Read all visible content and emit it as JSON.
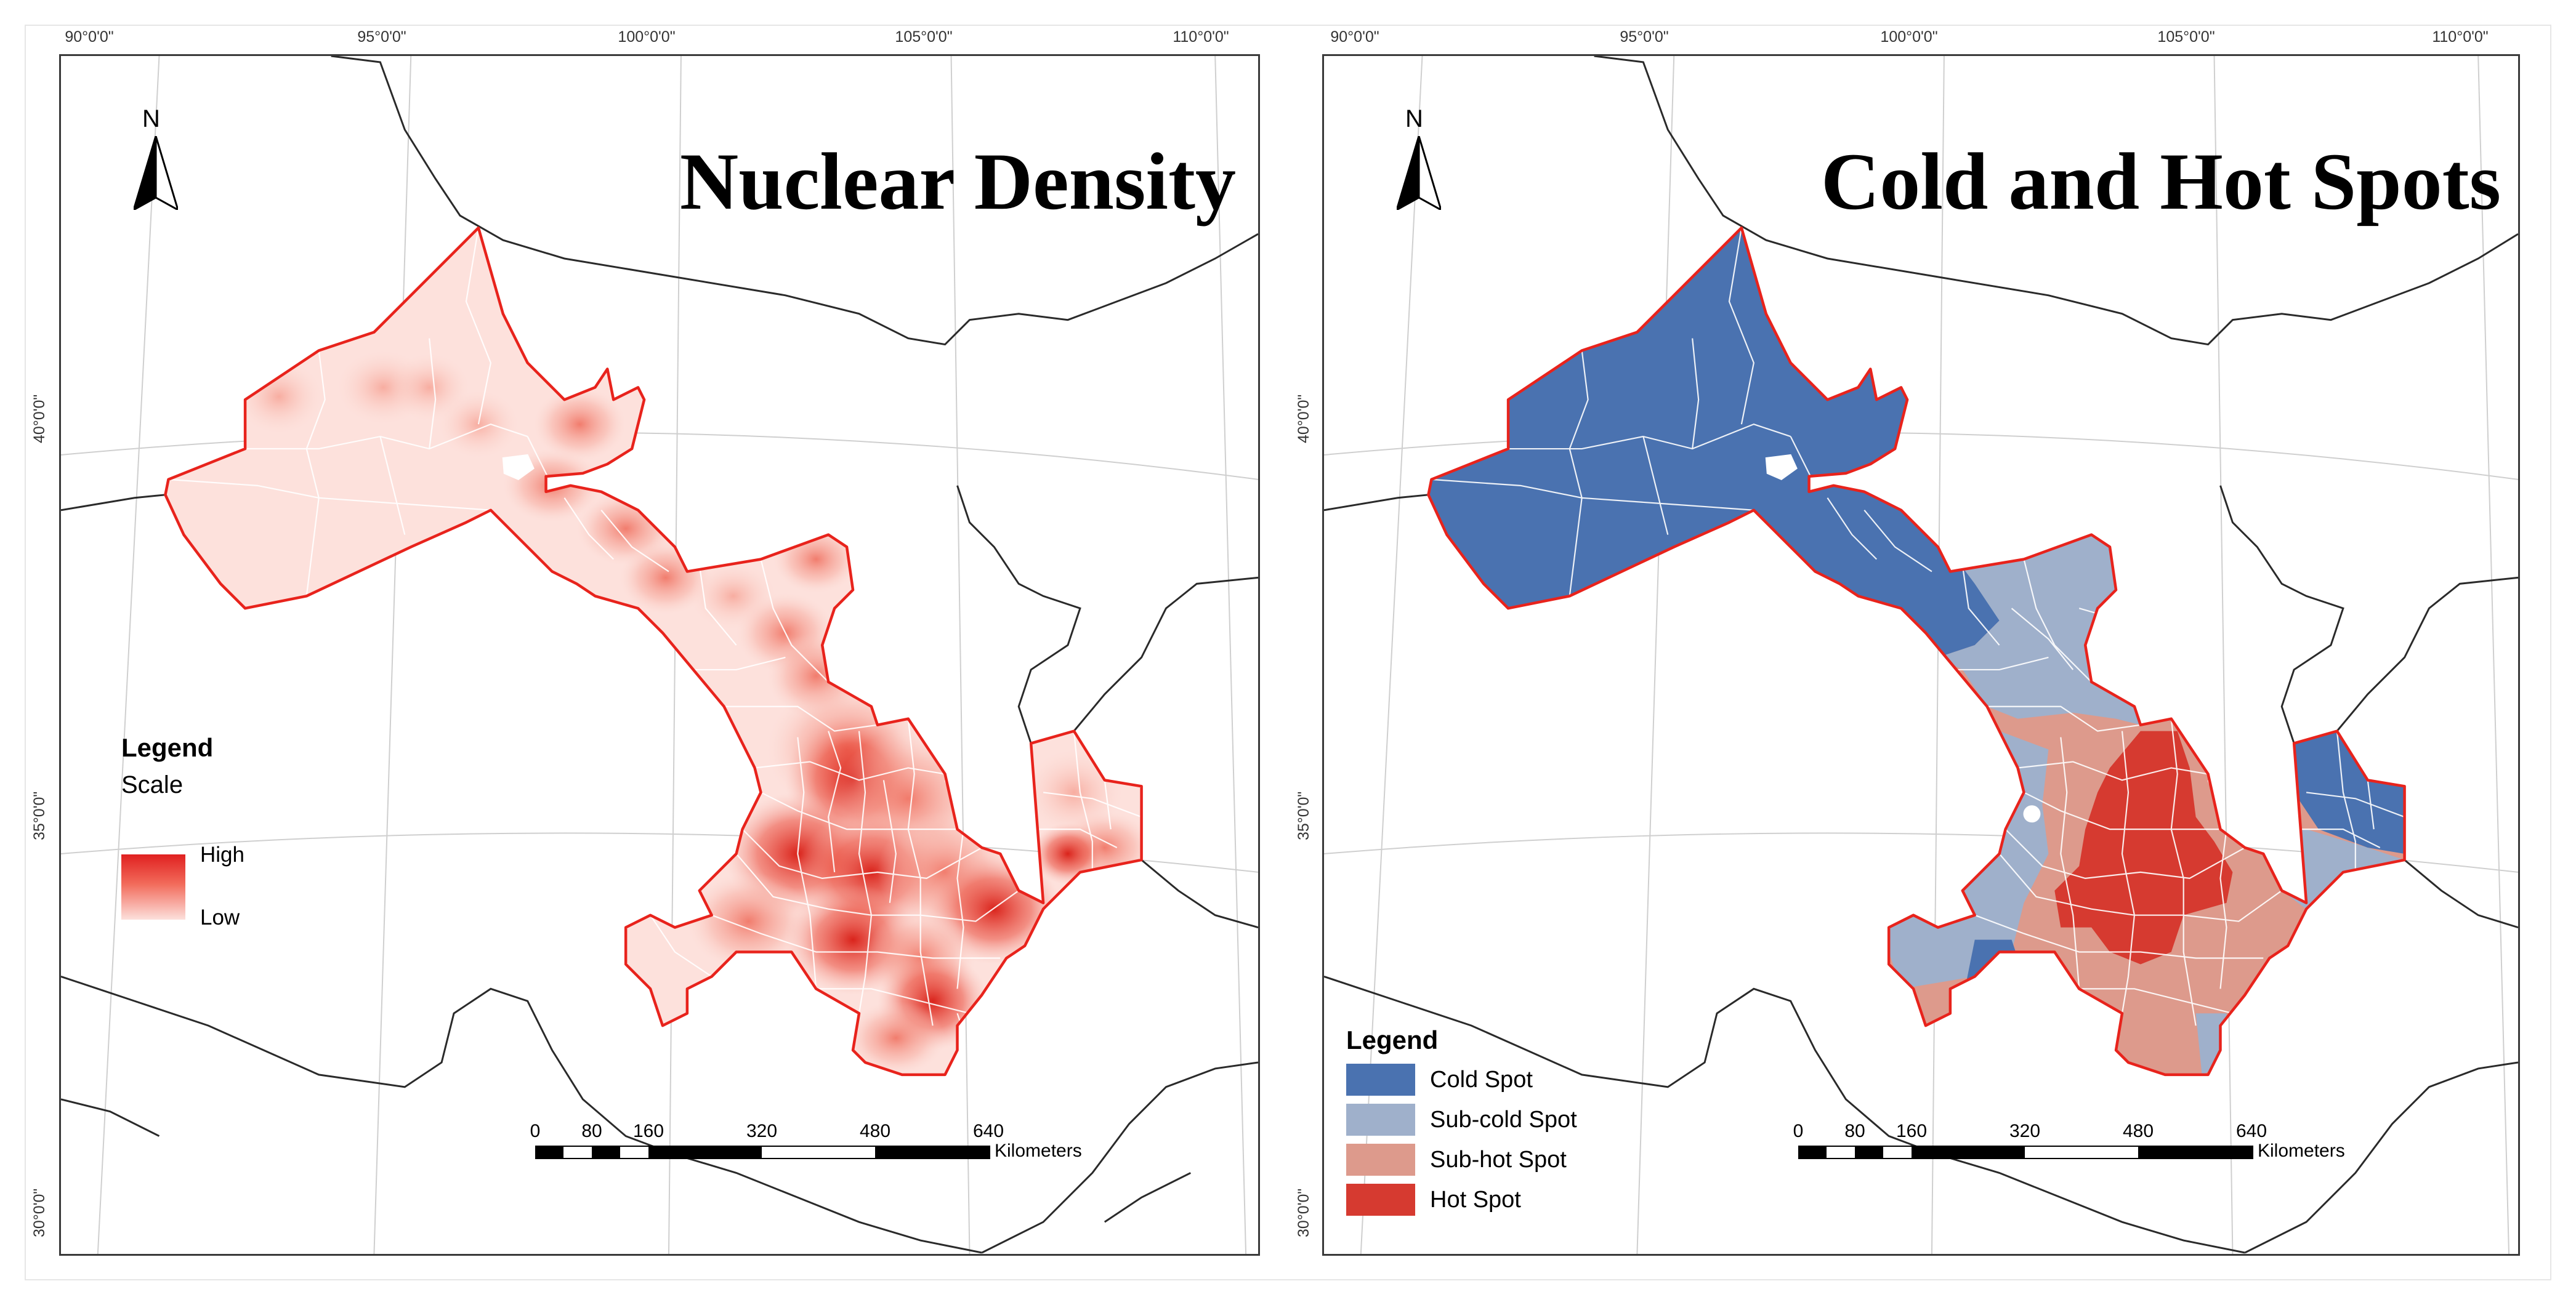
{
  "panels": {
    "left": {
      "title": "Nuclear Density",
      "north": "N",
      "legend": {
        "title": "Legend",
        "subtitle": "Scale",
        "high": "High",
        "low": "Low"
      },
      "top_ticks": [
        "90°0'0\"",
        "95°0'0\"",
        "100°0'0\"",
        "105°0'0\"",
        "110°0'0\""
      ],
      "left_ticks": [
        "40°0'0\"",
        "35°0'0\"",
        "30°0'0\""
      ],
      "scale": {
        "ticks": [
          "0",
          "80",
          "160",
          "320",
          "480",
          "640"
        ],
        "unit": "Kilometers"
      }
    },
    "right": {
      "title": "Cold and Hot Spots",
      "north": "N",
      "legend": {
        "title": "Legend",
        "items": [
          {
            "label": "Cold Spot",
            "color": "#4a72b0"
          },
          {
            "label": "Sub-cold Spot",
            "color": "#9fb0cb"
          },
          {
            "label": "Sub-hot Spot",
            "color": "#dd9a8c"
          },
          {
            "label": "Hot Spot",
            "color": "#d63a30"
          }
        ]
      },
      "top_ticks": [
        "90°0'0\"",
        "95°0'0\"",
        "100°0'0\"",
        "105°0'0\"",
        "110°0'0\""
      ],
      "left_ticks": [
        "40°0'0\"",
        "35°0'0\"",
        "30°0'0\""
      ],
      "scale": {
        "ticks": [
          "0",
          "80",
          "160",
          "320",
          "480",
          "640"
        ],
        "unit": "Kilometers"
      }
    }
  },
  "colors": {
    "boundary_red": "#e8231c",
    "density_base": "#fde3de",
    "cold": "#4a72b0",
    "subcold": "#9fb0cb",
    "subhot": "#dd9a8c",
    "hot": "#d63a30"
  }
}
